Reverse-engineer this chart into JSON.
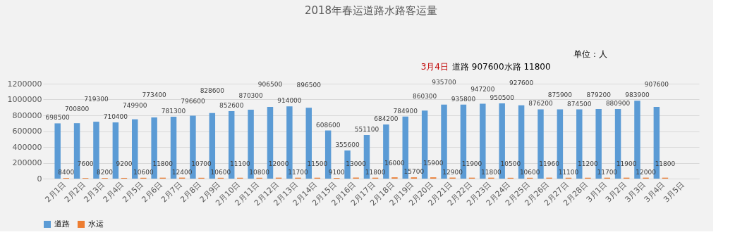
{
  "chart_data": {
    "type": "bar",
    "title": "2018年春运道路水路客运量",
    "annotations": [
      "单位：人",
      "3月4日",
      "道路 907600水路 11800"
    ],
    "categories": [
      "2月1日",
      "2月2日",
      "2月3日",
      "2月4日",
      "2月5日",
      "2月6日",
      "2月7日",
      "2月8日",
      "2月9日",
      "2月10日",
      "2月11日",
      "2月12日",
      "2月13日",
      "2月14日",
      "2月15日",
      "2月16日",
      "2月17日",
      "2月18日",
      "2月19日",
      "2月20日",
      "2月21日",
      "2月22日",
      "2月23日",
      "2月24日",
      "2月25日",
      "2月26日",
      "2月27日",
      "2月28日",
      "3月1日",
      "3月2日",
      "3月3日",
      "3月4日",
      "3月5日"
    ],
    "series": [
      {
        "name": "道路",
        "color": "#5b9bd5",
        "values": [
          698500,
          700800,
          719300,
          710400,
          749900,
          773400,
          781300,
          796600,
          828600,
          852600,
          870300,
          906500,
          914000,
          896500,
          608600,
          355600,
          551100,
          684200,
          784900,
          860300,
          935700,
          935800,
          947200,
          950500,
          927600,
          876200,
          875900,
          874500,
          879200,
          880900,
          983900,
          907600,
          null
        ]
      },
      {
        "name": "水运",
        "color": "#ed7d31",
        "values": [
          8400,
          7600,
          8200,
          9200,
          10600,
          11800,
          12400,
          10700,
          10600,
          11100,
          10800,
          12000,
          11700,
          11500,
          9100,
          13000,
          11800,
          16000,
          15700,
          15900,
          12900,
          11900,
          11800,
          10500,
          10600,
          11960,
          11100,
          11200,
          11700,
          11900,
          12000,
          11800,
          null
        ]
      }
    ],
    "ylim": [
      0,
      1200000
    ],
    "yticks": [
      0,
      200000,
      400000,
      600000,
      800000,
      1000000,
      1200000
    ],
    "grid": "y",
    "legend": "bottom",
    "data_labels": true
  }
}
